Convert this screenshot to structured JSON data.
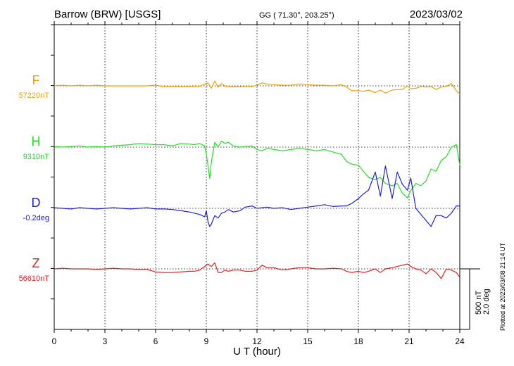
{
  "header": {
    "station": "Barrow (BRW)  [USGS]",
    "coords": "GG ( 71.30°, 203.25°)",
    "date": "2023/03/02"
  },
  "side_note": "Plotted at 2023/03/08 21:14 UT",
  "scale_bar": {
    "line1": "500 nT",
    "line2": "2.0 deg"
  },
  "chart_data": {
    "type": "line",
    "xlabel": "U T (hour)",
    "xlim": [
      0,
      24
    ],
    "xticks": [
      0,
      3,
      6,
      9,
      12,
      15,
      18,
      21,
      24
    ],
    "grid": true,
    "series": [
      {
        "name": "F",
        "baseline_label": "57220nT",
        "color": "#f0a000",
        "x": [
          0,
          0.5,
          1,
          1.5,
          2,
          2.5,
          3,
          3.5,
          4,
          4.5,
          5,
          5.5,
          6,
          6.5,
          7,
          7.5,
          8,
          8.3,
          8.6,
          8.9,
          9.1,
          9.3,
          9.5,
          9.7,
          9.9,
          10.1,
          10.3,
          10.6,
          11,
          11.3,
          11.7,
          12,
          12.3,
          12.6,
          13,
          13.5,
          14,
          14.5,
          15,
          15.5,
          16,
          16.5,
          17,
          17.3,
          17.6,
          18,
          18.3,
          18.6,
          19,
          19.3,
          19.6,
          20,
          20.3,
          20.6,
          20.9,
          21.1,
          21.4,
          21.7,
          22,
          22.3,
          22.6,
          22.9,
          23.2,
          23.5,
          23.8,
          24
        ],
        "y": [
          0,
          5,
          0,
          5,
          0,
          5,
          0,
          0,
          0,
          0,
          0,
          0,
          5,
          -5,
          -5,
          -5,
          -5,
          -5,
          -3,
          15,
          25,
          -20,
          40,
          -10,
          20,
          0,
          -5,
          -8,
          -8,
          -5,
          -5,
          5,
          25,
          15,
          10,
          5,
          5,
          15,
          10,
          5,
          5,
          0,
          10,
          -10,
          -40,
          -40,
          -45,
          -35,
          -55,
          -35,
          -60,
          -35,
          -30,
          -30,
          0,
          -25,
          -20,
          -5,
          -10,
          -5,
          -30,
          -10,
          -5,
          20,
          -40,
          -70
        ]
      },
      {
        "name": "H",
        "baseline_label": "9310nT",
        "color": "#20e020",
        "x": [
          0,
          0.5,
          1,
          1.5,
          2,
          2.5,
          3,
          3.5,
          4,
          4.5,
          5,
          5.5,
          6,
          6.5,
          7,
          7.5,
          8,
          8.3,
          8.6,
          8.9,
          9.0,
          9.1,
          9.2,
          9.3,
          9.5,
          9.7,
          9.9,
          10.1,
          10.3,
          10.6,
          11,
          11.3,
          11.7,
          12,
          12.3,
          12.6,
          13,
          13.5,
          14,
          14.5,
          15,
          15.5,
          16,
          16.5,
          17,
          17.3,
          17.6,
          18,
          18.3,
          18.6,
          19,
          19.3,
          19.6,
          20,
          20.3,
          20.6,
          20.9,
          21.1,
          21.4,
          21.7,
          22,
          22.3,
          22.6,
          22.9,
          23.2,
          23.5,
          23.8,
          24
        ],
        "y": [
          5,
          0,
          5,
          10,
          0,
          5,
          0,
          10,
          15,
          20,
          30,
          25,
          20,
          20,
          10,
          30,
          25,
          20,
          30,
          10,
          -60,
          -150,
          -260,
          -120,
          40,
          0,
          50,
          30,
          40,
          10,
          0,
          5,
          10,
          -20,
          -30,
          -10,
          -20,
          -30,
          -20,
          -10,
          -20,
          -30,
          -20,
          -40,
          -60,
          -120,
          -140,
          -150,
          -200,
          -250,
          -270,
          -250,
          -300,
          -320,
          -300,
          -380,
          -420,
          -360,
          -300,
          -320,
          -280,
          -180,
          -200,
          -110,
          -80,
          0,
          20,
          -150
        ]
      },
      {
        "name": "D",
        "baseline_label": "-0.2deg",
        "color": "#2020e0",
        "x": [
          0,
          0.5,
          1,
          1.5,
          2,
          2.5,
          3,
          3.5,
          4,
          4.5,
          5,
          5.5,
          6,
          6.5,
          7,
          7.5,
          8,
          8.3,
          8.6,
          8.9,
          9.0,
          9.1,
          9.2,
          9.3,
          9.5,
          9.7,
          9.9,
          10.1,
          10.3,
          10.6,
          11,
          11.3,
          11.7,
          12,
          12.3,
          12.6,
          13,
          13.5,
          14,
          14.5,
          15,
          15.5,
          16,
          16.5,
          17,
          17.3,
          17.6,
          18,
          18.3,
          18.6,
          19,
          19.3,
          19.6,
          20,
          20.3,
          20.6,
          20.9,
          21.1,
          21.4,
          21.7,
          22,
          22.3,
          22.6,
          22.9,
          23.2,
          23.5,
          23.8,
          24
        ],
        "y": [
          5,
          0,
          -5,
          5,
          0,
          -5,
          0,
          5,
          0,
          -5,
          0,
          5,
          -5,
          -5,
          -10,
          -20,
          -30,
          -40,
          -50,
          -70,
          -20,
          -110,
          -150,
          -130,
          -60,
          -80,
          -40,
          -30,
          -10,
          -30,
          -20,
          10,
          20,
          0,
          5,
          10,
          0,
          5,
          -10,
          0,
          10,
          20,
          30,
          15,
          20,
          20,
          40,
          80,
          120,
          150,
          300,
          100,
          350,
          80,
          300,
          200,
          150,
          250,
          0,
          -50,
          -100,
          -150,
          -60,
          -60,
          -80,
          -40,
          20,
          20
        ]
      },
      {
        "name": "Z",
        "baseline_label": "56610nT",
        "color": "#e02020",
        "x": [
          0,
          0.5,
          1,
          1.5,
          2,
          2.5,
          3,
          3.5,
          4,
          4.5,
          5,
          5.5,
          6,
          6.5,
          7,
          7.5,
          8,
          8.3,
          8.6,
          8.9,
          9.1,
          9.3,
          9.5,
          9.7,
          9.9,
          10.1,
          10.3,
          10.6,
          11,
          11.3,
          11.7,
          12,
          12.3,
          12.6,
          13,
          13.5,
          14,
          14.5,
          15,
          15.5,
          16,
          16.5,
          17,
          17.3,
          17.6,
          18,
          18.3,
          18.6,
          19,
          19.3,
          19.6,
          20,
          20.3,
          20.6,
          20.9,
          21.1,
          21.4,
          21.7,
          22,
          22.3,
          22.6,
          22.9,
          23.2,
          23.5,
          23.8,
          24
        ],
        "y": [
          0,
          5,
          0,
          0,
          0,
          -5,
          0,
          5,
          0,
          0,
          -5,
          -5,
          -25,
          -30,
          -30,
          -25,
          -20,
          -20,
          -10,
          20,
          40,
          20,
          50,
          -30,
          -30,
          -10,
          -20,
          -10,
          -10,
          -20,
          -20,
          -10,
          30,
          10,
          10,
          -10,
          0,
          10,
          10,
          0,
          0,
          5,
          0,
          -20,
          -30,
          -20,
          -30,
          -20,
          0,
          -30,
          0,
          10,
          20,
          30,
          40,
          20,
          0,
          -10,
          -40,
          0,
          -30,
          -80,
          0,
          -10,
          -30,
          -70
        ]
      }
    ],
    "scale_nT_per_unit": 500
  }
}
